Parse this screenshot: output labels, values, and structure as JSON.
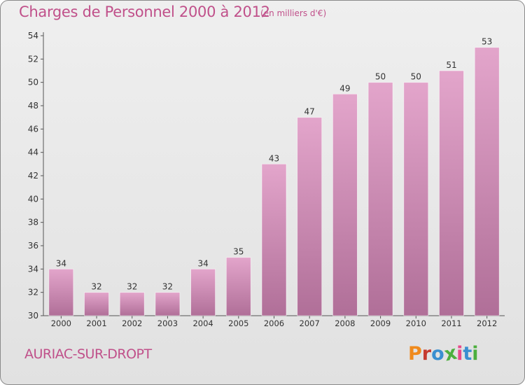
{
  "header": {
    "title": "Charges de Personnel 2000 à 2012",
    "subtitle": "(en milliers d'€)"
  },
  "footer": {
    "commune": "AURIAC-SUR-DROPT",
    "logo_text": "Proxiti"
  },
  "colors": {
    "title": "#c0508a",
    "bar_top": "#e3a5cb",
    "bar_bottom": "#b06f98",
    "logo_letters": [
      "#f08a1c",
      "#c53a2f",
      "#3a8fd0",
      "#4caf3e",
      "#e94a8b",
      "#3a8fd0",
      "#4caf3e"
    ]
  },
  "chart_data": {
    "type": "bar",
    "title": "Charges de Personnel 2000 à 2012",
    "subtitle": "(en milliers d'€)",
    "categories": [
      "2000",
      "2001",
      "2002",
      "2003",
      "2004",
      "2005",
      "2006",
      "2007",
      "2008",
      "2009",
      "2010",
      "2011",
      "2012"
    ],
    "values": [
      34,
      32,
      32,
      32,
      34,
      35,
      43,
      47,
      49,
      50,
      50,
      51,
      53
    ],
    "data_labels": [
      "34",
      "32",
      "32",
      "32",
      "34",
      "35",
      "43",
      "47",
      "49",
      "50",
      "50",
      "51",
      "53"
    ],
    "yticks": [
      30,
      32,
      34,
      36,
      38,
      40,
      42,
      44,
      46,
      48,
      50,
      52,
      54
    ],
    "ytick_labels": [
      "30",
      "32",
      "34",
      "36",
      "38",
      "40",
      "42",
      "44",
      "46",
      "48",
      "50",
      "52",
      "54"
    ],
    "ylim": [
      30,
      54
    ],
    "grid": false,
    "legend": "none"
  }
}
